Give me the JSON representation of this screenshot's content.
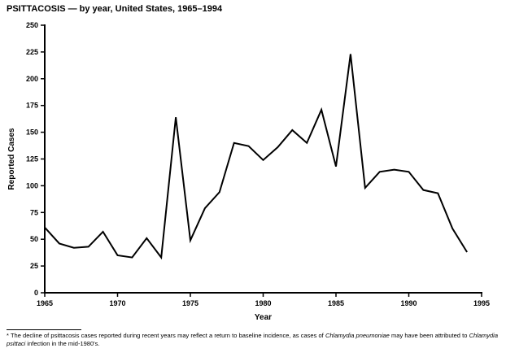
{
  "title": "PSITTACOSIS — by year, United States, 1965–1994",
  "chart_data": {
    "type": "line",
    "title": "PSITTACOSIS — by year, United States, 1965–1994",
    "xlabel": "Year",
    "ylabel": "Reported Cases",
    "xlim": [
      1965,
      1995
    ],
    "ylim": [
      0,
      250
    ],
    "xticks": [
      1965,
      1970,
      1975,
      1980,
      1985,
      1990,
      1995
    ],
    "yticks": [
      0,
      25,
      50,
      75,
      100,
      125,
      150,
      175,
      200,
      225,
      250
    ],
    "x": [
      1965,
      1966,
      1967,
      1968,
      1969,
      1970,
      1971,
      1972,
      1973,
      1974,
      1975,
      1976,
      1977,
      1978,
      1979,
      1980,
      1981,
      1982,
      1983,
      1984,
      1985,
      1986,
      1987,
      1988,
      1989,
      1990,
      1991,
      1992,
      1993,
      1994
    ],
    "values": [
      61,
      46,
      42,
      43,
      57,
      35,
      33,
      51,
      33,
      164,
      49,
      79,
      94,
      140,
      137,
      124,
      136,
      152,
      140,
      171,
      118,
      223,
      98,
      113,
      115,
      113,
      96,
      93,
      60,
      38
    ],
    "line_color": "#000000",
    "axis_color": "#000000",
    "grid": false,
    "legend": false
  },
  "footnote": {
    "segments": [
      {
        "text": "* The decline of psittacosis cases reported during recent years may reflect a return to baseline incidence, as cases of ",
        "italic": false
      },
      {
        "text": "Chlamydia pneumoniae",
        "italic": true
      },
      {
        "text": " may have been attributed to ",
        "italic": false
      },
      {
        "text": "Chlamydia psittaci",
        "italic": true
      },
      {
        "text": " infection in the mid-1980's.",
        "italic": false
      }
    ]
  }
}
